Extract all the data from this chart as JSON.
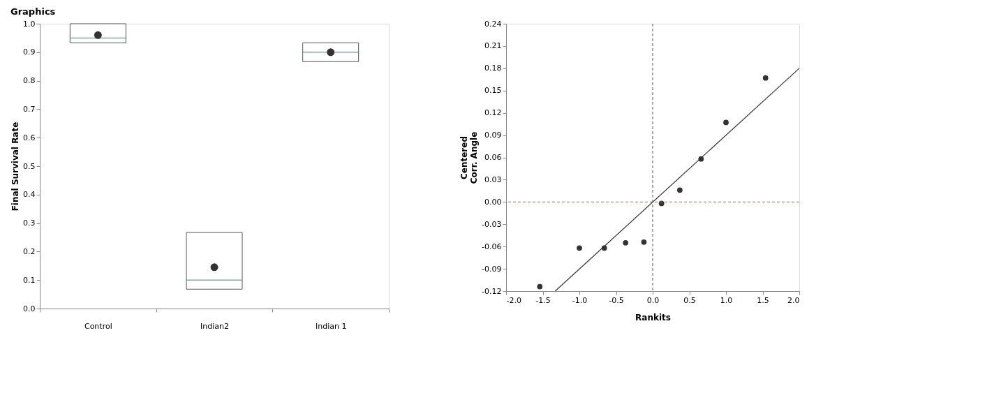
{
  "chart_data": [
    {
      "type": "box",
      "title": "Graphics",
      "ylabel": "Final Survival Rate",
      "categories": [
        "Control",
        "Indian2",
        "Indian 1"
      ],
      "boxes": [
        {
          "low": 0.933,
          "q1": 0.933,
          "median": 0.95,
          "q3": 1.0,
          "high": 1.0,
          "mean": 0.96
        },
        {
          "low": 0.068,
          "q1": 0.068,
          "median": 0.1,
          "q3": 0.267,
          "high": 0.267,
          "mean": 0.145
        },
        {
          "low": 0.867,
          "q1": 0.867,
          "median": 0.9,
          "q3": 0.933,
          "high": 0.933,
          "mean": 0.9
        }
      ],
      "color": "#555555",
      "ylim": [
        0,
        1
      ],
      "yticks": [
        {
          "value": 0,
          "label": "0.0"
        },
        {
          "value": 0.1,
          "label": "0.1"
        },
        {
          "value": 0.2,
          "label": "0.2"
        },
        {
          "value": 0.3,
          "label": "0.3"
        },
        {
          "value": 0.4,
          "label": "0.4"
        },
        {
          "value": 0.5,
          "label": "0.5"
        },
        {
          "value": 0.6,
          "label": "0.6"
        },
        {
          "value": 0.7,
          "label": "0.7"
        },
        {
          "value": 0.8,
          "label": "0.8"
        },
        {
          "value": 0.9,
          "label": "0.9"
        },
        {
          "value": 1.0,
          "label": "1.0"
        }
      ],
      "grid": false
    },
    {
      "type": "scatter",
      "xlabel": "Rankits",
      "ylabel": "Centered\nCorr. Angle",
      "series": [
        {
          "type": "scatter",
          "color": "#333333",
          "marker": "circle",
          "x": [
            -1.54,
            -1.0,
            -0.66,
            -0.37,
            -0.12,
            0.12,
            0.37,
            0.66,
            1.0,
            1.54
          ],
          "values": [
            -0.114,
            -0.062,
            -0.062,
            -0.055,
            -0.054,
            -0.002,
            0.016,
            0.058,
            0.107,
            0.167
          ]
        },
        {
          "type": "line",
          "color": "#333333",
          "line_style": "solid",
          "x": [
            -1.33,
            2.0
          ],
          "values": [
            -0.12,
            0.18
          ]
        }
      ],
      "xlim": [
        -2.0,
        2.0
      ],
      "ylim": [
        -0.12,
        0.24
      ],
      "xticks": [
        {
          "value": -2.0,
          "label": "-2.0"
        },
        {
          "value": -1.5,
          "label": "-1.5"
        },
        {
          "value": -1.0,
          "label": "-1.0"
        },
        {
          "value": -0.5,
          "label": "-0.5"
        },
        {
          "value": 0,
          "label": "0.0"
        },
        {
          "value": 0.5,
          "label": "0.5"
        },
        {
          "value": 1.0,
          "label": "1.0"
        },
        {
          "value": 1.5,
          "label": "1.5"
        },
        {
          "value": 2.0,
          "label": "2.0"
        }
      ],
      "yticks": [
        {
          "value": -0.12,
          "label": "-0.12"
        },
        {
          "value": -0.09,
          "label": "-0.09"
        },
        {
          "value": -0.06,
          "label": "-0.06"
        },
        {
          "value": -0.03,
          "label": "-0.03"
        },
        {
          "value": 0,
          "label": "0.00"
        },
        {
          "value": 0.03,
          "label": "0.03"
        },
        {
          "value": 0.06,
          "label": "0.06"
        },
        {
          "value": 0.09,
          "label": "0.09"
        },
        {
          "value": 0.12,
          "label": "0.12"
        },
        {
          "value": 0.15,
          "label": "0.15"
        },
        {
          "value": 0.18,
          "label": "0.18"
        },
        {
          "value": 0.21,
          "label": "0.21"
        },
        {
          "value": 0.24,
          "label": "0.24"
        }
      ],
      "ref_lines": [
        {
          "axis": "x",
          "value": 0,
          "color": "#555555",
          "line_style": "dashed"
        },
        {
          "axis": "y",
          "value": 0,
          "color": "#8a7a55",
          "line_style": "dashed"
        }
      ],
      "grid": false
    }
  ]
}
